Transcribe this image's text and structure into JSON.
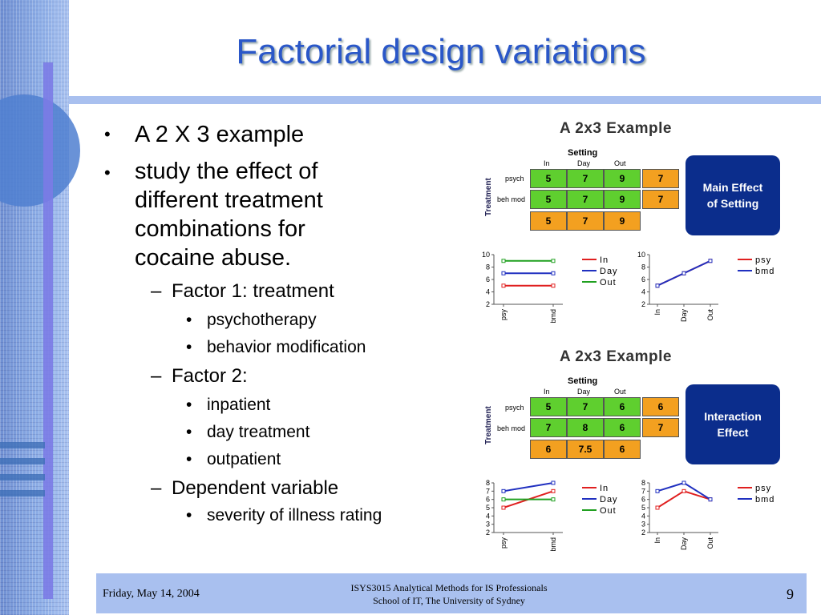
{
  "slide": {
    "title": "Factorial design variations",
    "bullets": [
      {
        "text": "A 2 X 3 example"
      },
      {
        "text": "study the effect of different treatment combinations for cocaine abuse."
      }
    ],
    "sub": [
      {
        "dash": "–",
        "text": "Factor 1: treatment",
        "items": [
          "psychotherapy",
          "behavior modification"
        ]
      },
      {
        "dash": "–",
        "text": "Factor 2:",
        "items": [
          "inpatient",
          "day treatment",
          "outpatient"
        ]
      },
      {
        "dash": "–",
        "text": "Dependent variable",
        "items": [
          "severity of illness rating"
        ]
      }
    ],
    "bullet_glyph": "•"
  },
  "example1": {
    "title": "A 2x3 Example",
    "setting_label": "Setting",
    "treatment_label": "Treatment",
    "cols": [
      "In",
      "Day",
      "Out"
    ],
    "rows": [
      "psych",
      "beh mod"
    ],
    "cells": [
      [
        "5",
        "7",
        "9"
      ],
      [
        "5",
        "7",
        "9"
      ]
    ],
    "row_means": [
      "7",
      "7"
    ],
    "col_means": [
      "5",
      "7",
      "9"
    ],
    "effect_label_1": "Main Effect",
    "effect_label_2": "of Setting"
  },
  "example2": {
    "title": "A 2x3 Example",
    "setting_label": "Setting",
    "treatment_label": "Treatment",
    "cols": [
      "In",
      "Day",
      "Out"
    ],
    "rows": [
      "psych",
      "beh mod"
    ],
    "cells": [
      [
        "5",
        "7",
        "6"
      ],
      [
        "7",
        "8",
        "6"
      ]
    ],
    "row_means": [
      "6",
      "7"
    ],
    "col_means": [
      "6",
      "7.5",
      "6"
    ],
    "effect_label_1": "Interaction",
    "effect_label_2": "Effect"
  },
  "chart_data": [
    {
      "type": "line",
      "x": [
        "psy",
        "bmd"
      ],
      "series": [
        {
          "name": "In",
          "values": [
            5,
            5
          ]
        },
        {
          "name": "Day",
          "values": [
            7,
            7
          ]
        },
        {
          "name": "Out",
          "values": [
            9,
            9
          ]
        }
      ],
      "ylim": [
        2,
        10
      ],
      "yticks": [
        "2",
        "4",
        "6",
        "8",
        "10"
      ],
      "series_colors": [
        "#e02020",
        "#2030c0",
        "#20a020"
      ]
    },
    {
      "type": "line",
      "x": [
        "In",
        "Day",
        "Out"
      ],
      "series": [
        {
          "name": "psy",
          "values": [
            5,
            7,
            9
          ]
        },
        {
          "name": "bmd",
          "values": [
            5,
            7,
            9
          ]
        }
      ],
      "ylim": [
        2,
        10
      ],
      "yticks": [
        "2",
        "4",
        "6",
        "8",
        "10"
      ],
      "series_colors": [
        "#e02020",
        "#2030c0"
      ]
    },
    {
      "type": "line",
      "x": [
        "psy",
        "bmd"
      ],
      "series": [
        {
          "name": "In",
          "values": [
            5,
            7
          ]
        },
        {
          "name": "Day",
          "values": [
            7,
            8
          ]
        },
        {
          "name": "Out",
          "values": [
            6,
            6
          ]
        }
      ],
      "ylim": [
        2,
        8
      ],
      "yticks": [
        "2",
        "3",
        "4",
        "5",
        "6",
        "7",
        "8"
      ],
      "series_colors": [
        "#e02020",
        "#2030c0",
        "#20a020"
      ]
    },
    {
      "type": "line",
      "x": [
        "In",
        "Day",
        "Out"
      ],
      "series": [
        {
          "name": "psy",
          "values": [
            5,
            7,
            6
          ]
        },
        {
          "name": "bmd",
          "values": [
            7,
            8,
            6
          ]
        }
      ],
      "ylim": [
        2,
        8
      ],
      "yticks": [
        "2",
        "3",
        "4",
        "5",
        "6",
        "7",
        "8"
      ],
      "series_colors": [
        "#e02020",
        "#2030c0"
      ]
    }
  ],
  "footer": {
    "date": "Friday, May 14, 2004",
    "course": "ISYS3015 Analytical Methods for IS Professionals",
    "school": "School of IT, The University of Sydney",
    "page": "9"
  }
}
